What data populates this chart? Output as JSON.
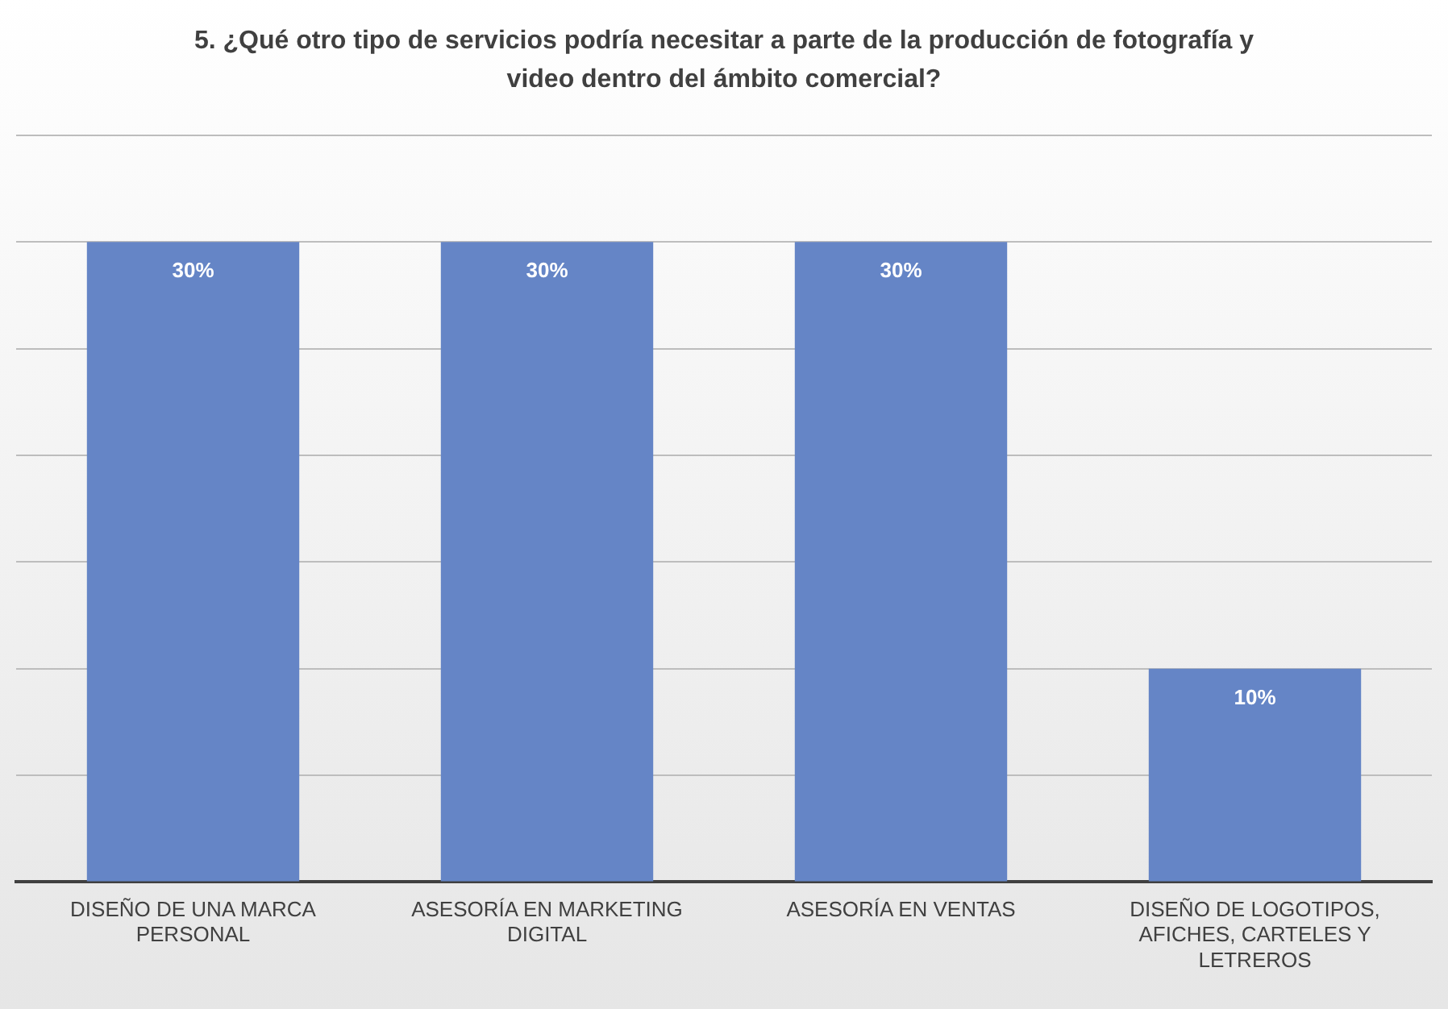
{
  "chart_data": {
    "type": "bar",
    "title": "5. ¿Qué otro tipo de servicios podría necesitar a parte de la producción de fotografía y video dentro del ámbito comercial?",
    "categories": [
      "DISEÑO DE UNA MARCA PERSONAL",
      "ASESORÍA EN MARKETING DIGITAL",
      "ASESORÍA EN VENTAS",
      "DISEÑO DE LOGOTIPOS, AFICHES, CARTELES Y LETREROS"
    ],
    "values": [
      30,
      30,
      30,
      10
    ],
    "value_labels": [
      "30%",
      "30%",
      "30%",
      "10%"
    ],
    "color": "#6585c6",
    "ylim": [
      0,
      35
    ],
    "yticks": [
      {
        "value": 0,
        "label": null
      },
      {
        "value": 5,
        "label": null
      },
      {
        "value": 10,
        "label": null
      },
      {
        "value": 15,
        "label": null
      },
      {
        "value": 20,
        "label": null
      },
      {
        "value": 25,
        "label": null
      },
      {
        "value": 30,
        "label": null
      },
      {
        "value": 35,
        "label": null
      }
    ],
    "grid": "y",
    "legend": false,
    "tick_labels": "x"
  }
}
